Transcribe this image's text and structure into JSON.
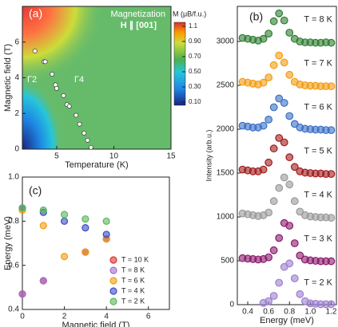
{
  "chart_data": [
    {
      "type": "heatmap",
      "panel_label": "(a)",
      "title": "Magnetization",
      "subtitle": "H ∥ [001]",
      "annotations": [
        "Γ2",
        "Γ4"
      ],
      "x_label": "Temperature (K)",
      "y_label": "Magnetic field (T)",
      "xlim": [
        2,
        15
      ],
      "xticks": [
        5,
        10,
        15
      ],
      "ylim": [
        0,
        8
      ],
      "yticks": [
        0,
        2,
        4,
        6
      ],
      "colorbar_label": "M (μB/f.u.)",
      "clim": [
        0.1,
        1.1
      ],
      "cticks": [
        {
          "value": 0.1,
          "label": "0.10"
        },
        {
          "value": 0.3,
          "label": "0.30"
        },
        {
          "value": 0.5,
          "label": "0.50"
        },
        {
          "value": 0.7,
          "label": "0.70"
        },
        {
          "value": 0.9,
          "label": "0.90"
        },
        1.1
      ],
      "x": [
        3.1,
        3.9,
        4.0,
        4.6,
        4.9,
        5.0,
        5.6,
        5.9,
        6.1,
        6.7,
        7.0,
        7.4,
        7.7,
        8.0
      ],
      "values": [
        5.5,
        4.9,
        4.9,
        4.2,
        3.6,
        3.4,
        3.0,
        2.5,
        2.4,
        1.9,
        1.4,
        0.9,
        0.5,
        0.1
      ],
      "color": "#ffffff"
    },
    {
      "type": "scatter",
      "panel_label": "(b)",
      "x_label": "Energy (meV)",
      "y_label": "Intensity (arb.u.)",
      "xlim": [
        0.3,
        1.25
      ],
      "xticks": [
        0.4,
        0.6,
        0.8,
        {
          "value": 1.0,
          "label": "1.0"
        },
        1.2
      ],
      "ylim": [
        0,
        3400
      ],
      "yticks": [
        0,
        500,
        1000,
        1500,
        2000,
        2500,
        3000
      ],
      "x": [
        0.35,
        0.4,
        0.45,
        0.5,
        0.55,
        0.6,
        0.65,
        0.7,
        0.75,
        0.8,
        0.85,
        0.9,
        0.95,
        1.0,
        1.05,
        1.1,
        1.15,
        1.2
      ],
      "series": [
        {
          "name": "T = 8 K",
          "color": "#2e7d32",
          "values": [
            3040,
            3030,
            3020,
            3010,
            3030,
            3090,
            3230,
            3320,
            3240,
            3100,
            3030,
            3000,
            2990,
            2990,
            2985,
            2985,
            2990,
            2985
          ]
        },
        {
          "name": "T = 7 K",
          "color": "#f39c12",
          "values": [
            2540,
            2530,
            2520,
            2510,
            2530,
            2590,
            2730,
            2840,
            2760,
            2620,
            2540,
            2510,
            2500,
            2495,
            2495,
            2490,
            2490,
            2490
          ]
        },
        {
          "name": "T = 6 K",
          "color": "#3a6fc4",
          "values": [
            2040,
            2030,
            2020,
            2020,
            2040,
            2110,
            2250,
            2350,
            2300,
            2150,
            2060,
            2020,
            2005,
            2000,
            1995,
            1995,
            1990,
            1990
          ]
        },
        {
          "name": "T = 5 K",
          "color": "#a11c1c",
          "values": [
            1540,
            1530,
            1520,
            1520,
            1540,
            1620,
            1780,
            1900,
            1850,
            1680,
            1570,
            1520,
            1505,
            1500,
            1495,
            1495,
            1490,
            1490
          ]
        },
        {
          "name": "T = 4 K",
          "color": "#9a9a9a",
          "values": [
            1040,
            1030,
            1020,
            1010,
            1020,
            1050,
            1180,
            1330,
            1450,
            1370,
            1180,
            1060,
            1020,
            1005,
            1000,
            995,
            995,
            990
          ]
        },
        {
          "name": "T = 3 K",
          "color": "#8b1a6b",
          "values": [
            530,
            525,
            520,
            515,
            520,
            540,
            620,
            760,
            930,
            900,
            700,
            560,
            515,
            505,
            500,
            495,
            495,
            495
          ]
        },
        {
          "name": "T = 2 K",
          "color": "#9b7fd0",
          "values": [
            null,
            null,
            null,
            null,
            20,
            40,
            100,
            250,
            430,
            470,
            300,
            120,
            40,
            15,
            10,
            5,
            5,
            5
          ]
        }
      ]
    },
    {
      "type": "scatter",
      "panel_label": "(c)",
      "x_label": "Magnetic field (T)",
      "y_label": "Energy (meV)",
      "xlim": [
        0,
        7
      ],
      "xticks": [
        0,
        2,
        4,
        6
      ],
      "ylim": [
        0.4,
        1.0
      ],
      "yticks": [
        0.4,
        0.6,
        0.8,
        {
          "value": 1.0,
          "label": "1.0"
        }
      ],
      "legend": "lower right",
      "x": [
        0,
        1,
        2,
        3,
        4
      ],
      "series": [
        {
          "name": "T = 10 K",
          "color": "#e03030",
          "values": [
            0.47,
            0.53,
            null,
            0.66,
            0.72
          ]
        },
        {
          "name": "T = 8 K",
          "color": "#a070d0",
          "values": [
            0.47,
            0.53,
            null,
            0.66,
            0.72
          ]
        },
        {
          "name": "T = 6 K",
          "color": "#f39c12",
          "values": [
            0.85,
            0.78,
            0.64,
            0.66,
            0.72
          ]
        },
        {
          "name": "T = 4 K",
          "color": "#3a4fc4",
          "values": [
            0.86,
            0.84,
            0.8,
            0.77,
            0.74
          ]
        },
        {
          "name": "T = 2 K",
          "color": "#5cb85c",
          "values": [
            0.86,
            0.85,
            0.83,
            0.81,
            0.8
          ]
        }
      ]
    }
  ]
}
